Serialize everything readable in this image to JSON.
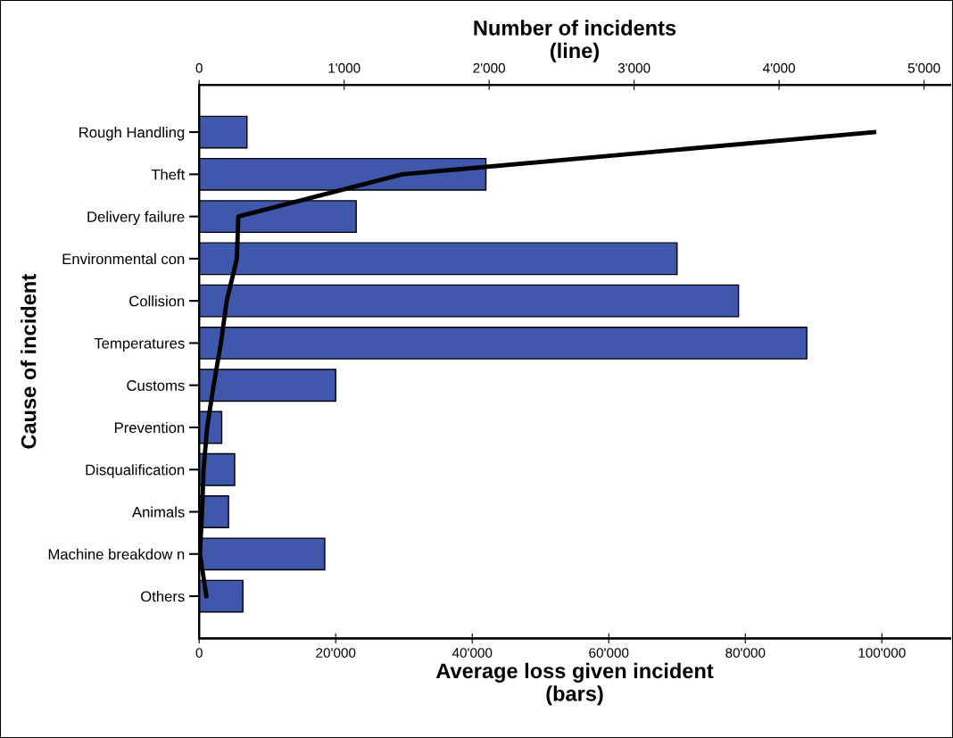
{
  "chart_data": {
    "type": "bar",
    "orientation": "horizontal",
    "title": null,
    "categories": [
      "Rough Handling",
      "Theft",
      "Delivery failure",
      "Environmental con",
      "Collision",
      "Temperatures",
      "Customs",
      "Prevention",
      "Disqualification",
      "Animals",
      "Machine breakdow n",
      "Others"
    ],
    "series": [
      {
        "color": "#3f58ac",
        "values": [
          7000,
          42000,
          23000,
          70000,
          79000,
          89000,
          20000,
          3300,
          5200,
          4300,
          18400,
          6400
        ]
      },
      {
        "type": "line",
        "axis": "x2",
        "color": "#000000",
        "values": [
          4655,
          1400,
          270,
          260,
          190,
          150,
          100,
          55,
          30,
          20,
          5,
          50
        ]
      }
    ],
    "xlim": [
      0,
      110000
    ],
    "xticks": [
      0,
      {
        "value": 20000,
        "label": "20'000"
      },
      {
        "value": 40000,
        "label": "40'000"
      },
      {
        "value": 60000,
        "label": "60'000"
      },
      {
        "value": 80000,
        "label": "80'000"
      },
      {
        "value": 100000,
        "label": "100'000"
      }
    ],
    "x2lim": [
      0,
      5180
    ],
    "x2ticks": [
      0,
      {
        "value": 1000,
        "label": "1'000"
      },
      {
        "value": 2000,
        "label": "2'000"
      },
      {
        "value": 3000,
        "label": "3'000"
      },
      {
        "value": 4000,
        "label": "4'000"
      },
      {
        "value": 5000,
        "label": "5'000"
      }
    ],
    "xlabel": "Average loss given incident\n(bars)",
    "x2label": "Number of incidents\n(line)",
    "ylabel": "Cause of incident",
    "grid": false,
    "legend": false,
    "marker": "none",
    "line_style": "solid"
  }
}
